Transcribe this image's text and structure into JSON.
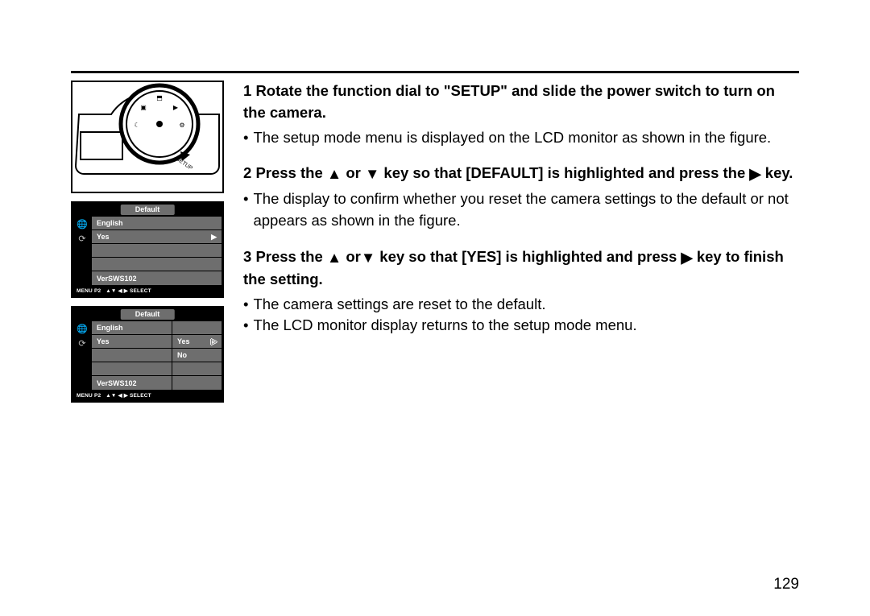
{
  "page_number": "129",
  "steps": [
    {
      "num": "1",
      "title_parts": [
        "Rotate the function dial to \"SETUP\" and slide the power switch to turn on the camera."
      ],
      "bullets": [
        "The setup mode menu is displayed on the LCD monitor as shown in the figure."
      ]
    },
    {
      "num": "2",
      "title_parts": [
        "Press the ",
        "UP",
        " or ",
        "DOWN",
        "  key so that [DEFAULT] is highlighted and press the ",
        "RIGHT",
        " key."
      ],
      "bullets": [
        "The display to confirm whether you reset the camera settings to the default or not appears as shown in the figure."
      ]
    },
    {
      "num": "3",
      "title_parts": [
        "Press the ",
        "UP",
        " or",
        "DOWN",
        " key so that [YES] is highlighted and press ",
        "RIGHT",
        " key to finish the setting."
      ],
      "bullets": [
        "The camera settings are reset to the default.",
        "The LCD monitor display returns to the setup mode menu."
      ]
    }
  ],
  "lcd1": {
    "title": "Default",
    "rows_c1": [
      "English",
      "Yes",
      "",
      "",
      "VerSWS102"
    ],
    "rows_c1_arrow_index": 1,
    "footer_left": "MENU P2",
    "footer_right": "▲▼ ◀ ▶ SELECT"
  },
  "lcd2": {
    "title": "Default",
    "rows_c1": [
      "English",
      "Yes",
      "",
      "",
      "VerSWS102"
    ],
    "rows_c2": [
      "",
      "Yes",
      "No",
      "",
      ""
    ],
    "rows_c2_arrow_index": 1,
    "footer_left": "MENU P2",
    "footer_right": "▲▼ ◀ ▶ SELECT"
  },
  "glyphs": {
    "UP": "▲",
    "DOWN": "▼",
    "RIGHT": "▶"
  }
}
